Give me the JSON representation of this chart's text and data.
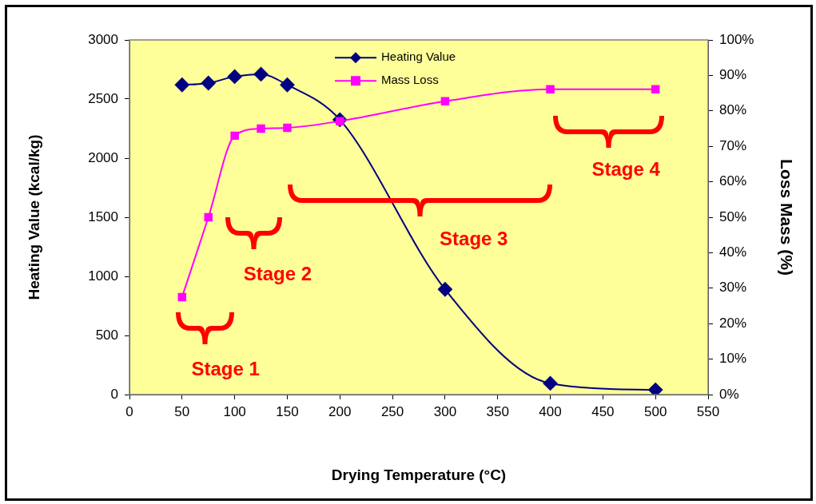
{
  "chart_data": {
    "type": "line",
    "xlabel": "Drying Temperature (°C)",
    "ylabel": "Heating Value (kcal/kg)",
    "y2label": "Loss Mass (%)",
    "x": [
      50,
      75,
      100,
      125,
      150,
      200,
      300,
      400,
      500
    ],
    "series": [
      {
        "name": "Heating Value",
        "color": "#000080",
        "marker": "diamond",
        "values": [
          2620,
          2635,
          2690,
          2710,
          2620,
          2325,
          890,
          95,
          40
        ]
      },
      {
        "name": "Mass Loss",
        "color": "#ff00ff",
        "marker": "square",
        "axis": "y2",
        "values": [
          27.5,
          50,
          73,
          75,
          75.2,
          77.1,
          82.7,
          86.1,
          86.1
        ]
      }
    ],
    "xlim": [
      0,
      550
    ],
    "xticks": [
      0,
      50,
      100,
      150,
      200,
      250,
      300,
      350,
      400,
      450,
      500,
      550
    ],
    "ylim": [
      0,
      3000
    ],
    "yticks": [
      0,
      500,
      1000,
      1500,
      2000,
      2500,
      3000
    ],
    "y2lim": [
      0,
      100
    ],
    "y2ticks": [
      {
        "value": 0,
        "label": "0%"
      },
      {
        "value": 10,
        "label": "10%"
      },
      {
        "value": 20,
        "label": "20%"
      },
      {
        "value": 30,
        "label": "30%"
      },
      {
        "value": 40,
        "label": "40%"
      },
      {
        "value": 50,
        "label": "50%"
      },
      {
        "value": 60,
        "label": "60%"
      },
      {
        "value": 70,
        "label": "70%"
      },
      {
        "value": 80,
        "label": "80%"
      },
      {
        "value": 90,
        "label": "90%"
      },
      {
        "value": 100,
        "label": "100%"
      }
    ],
    "legend": "top",
    "annotations": [
      "Stage 1",
      "Stage 2",
      "Stage 3",
      "Stage 4"
    ]
  }
}
